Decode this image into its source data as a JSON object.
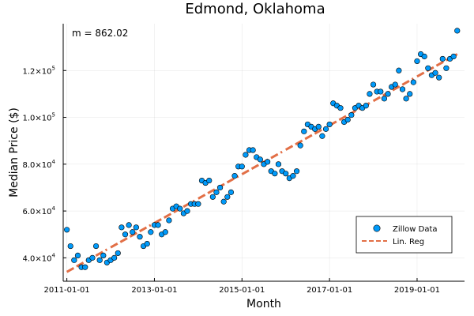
{
  "chart_data": {
    "type": "scatter",
    "title": "Edmond, Oklahoma",
    "xlabel": "Month",
    "ylabel": "Median Price ($)",
    "annotation": "m = 862.02",
    "grid": true,
    "legend_position": "bottom-right",
    "xlim": [
      "2010-12-01",
      "2020-02-01"
    ],
    "ylim": [
      30000,
      140000
    ],
    "x_ticks": [
      "2011-01-01",
      "2013-01-01",
      "2015-01-01",
      "2017-01-01",
      "2019-01-01"
    ],
    "y_ticks": [
      {
        "value": 40000,
        "mantissa": "4.0×10",
        "exp": "4"
      },
      {
        "value": 60000,
        "mantissa": "6.0×10",
        "exp": "4"
      },
      {
        "value": 80000,
        "mantissa": "8.0×10",
        "exp": "4"
      },
      {
        "value": 100000,
        "mantissa": "1.0×10",
        "exp": "5"
      },
      {
        "value": 120000,
        "mantissa": "1.2×10",
        "exp": "5"
      }
    ],
    "series": [
      {
        "name": "Zillow Data",
        "kind": "scatter",
        "color": "#009AFA",
        "x": [
          "2011-01-01",
          "2011-02-01",
          "2011-03-01",
          "2011-04-01",
          "2011-05-01",
          "2011-06-01",
          "2011-07-01",
          "2011-08-01",
          "2011-09-01",
          "2011-10-01",
          "2011-11-01",
          "2011-12-01",
          "2012-01-01",
          "2012-02-01",
          "2012-03-01",
          "2012-04-01",
          "2012-05-01",
          "2012-06-01",
          "2012-07-01",
          "2012-08-01",
          "2012-09-01",
          "2012-10-01",
          "2012-11-01",
          "2012-12-01",
          "2013-01-01",
          "2013-02-01",
          "2013-03-01",
          "2013-04-01",
          "2013-05-01",
          "2013-06-01",
          "2013-07-01",
          "2013-08-01",
          "2013-09-01",
          "2013-10-01",
          "2013-11-01",
          "2013-12-01",
          "2014-01-01",
          "2014-02-01",
          "2014-03-01",
          "2014-04-01",
          "2014-05-01",
          "2014-06-01",
          "2014-07-01",
          "2014-08-01",
          "2014-09-01",
          "2014-10-01",
          "2014-11-01",
          "2014-12-01",
          "2015-01-01",
          "2015-02-01",
          "2015-03-01",
          "2015-04-01",
          "2015-05-01",
          "2015-06-01",
          "2015-07-01",
          "2015-08-01",
          "2015-09-01",
          "2015-10-01",
          "2015-11-01",
          "2015-12-01",
          "2016-01-01",
          "2016-02-01",
          "2016-03-01",
          "2016-04-01",
          "2016-05-01",
          "2016-06-01",
          "2016-07-01",
          "2016-08-01",
          "2016-09-01",
          "2016-10-01",
          "2016-11-01",
          "2016-12-01",
          "2017-01-01",
          "2017-02-01",
          "2017-03-01",
          "2017-04-01",
          "2017-05-01",
          "2017-06-01",
          "2017-07-01",
          "2017-08-01",
          "2017-09-01",
          "2017-10-01",
          "2017-11-01",
          "2017-12-01",
          "2018-01-01",
          "2018-02-01",
          "2018-03-01",
          "2018-04-01",
          "2018-05-01",
          "2018-06-01",
          "2018-07-01",
          "2018-08-01",
          "2018-09-01",
          "2018-10-01",
          "2018-11-01",
          "2018-12-01",
          "2019-01-01",
          "2019-02-01",
          "2019-03-01",
          "2019-04-01",
          "2019-05-01",
          "2019-06-01",
          "2019-07-01",
          "2019-08-01",
          "2019-09-01",
          "2019-10-01",
          "2019-11-01",
          "2019-12-01"
        ],
        "y": [
          52000,
          45000,
          39000,
          41000,
          36000,
          36000,
          39000,
          40000,
          45000,
          39000,
          41000,
          38000,
          39000,
          40000,
          42000,
          53000,
          50000,
          54000,
          51000,
          53000,
          49000,
          45000,
          46000,
          51000,
          54000,
          54000,
          50000,
          51000,
          56000,
          61000,
          62000,
          61000,
          59000,
          60000,
          63000,
          63000,
          63000,
          73000,
          72000,
          73000,
          66000,
          68000,
          70000,
          64000,
          66000,
          68000,
          75000,
          79000,
          79000,
          84000,
          86000,
          86000,
          83000,
          82000,
          80000,
          81000,
          77000,
          76000,
          80000,
          77000,
          76000,
          74000,
          75000,
          77000,
          88000,
          94000,
          97000,
          96000,
          95000,
          96000,
          92000,
          95000,
          97000,
          106000,
          105000,
          104000,
          98000,
          99000,
          101000,
          104000,
          105000,
          104000,
          105000,
          110000,
          114000,
          111000,
          111000,
          108000,
          110000,
          113000,
          114000,
          120000,
          112000,
          108000,
          110000,
          115000,
          124000,
          127000,
          126000,
          121000,
          118000,
          119000,
          117000,
          125000,
          121000,
          125000,
          126000,
          137000
        ]
      },
      {
        "name": "Lin. Reg",
        "kind": "dashed-line",
        "color": "#E26F46",
        "segment_years": [
          2011,
          2012,
          2013,
          2014,
          2015,
          2016,
          2017,
          2018,
          2019
        ],
        "slope": 862.02,
        "start": {
          "x": "2011-01-01",
          "y": 34000
        },
        "end": {
          "x": "2019-12-01",
          "y": 127000
        }
      }
    ]
  }
}
